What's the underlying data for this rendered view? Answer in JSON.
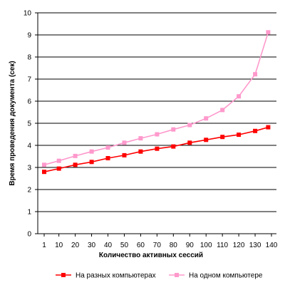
{
  "chart_data": {
    "type": "line",
    "title": "",
    "xlabel": "Количество активных сессий",
    "ylabel": "Время проведения документа (сек)",
    "categories": [
      "1",
      "10",
      "20",
      "30",
      "40",
      "50",
      "60",
      "70",
      "80",
      "90",
      "100",
      "110",
      "120",
      "130",
      "140"
    ],
    "ylim": [
      0,
      10
    ],
    "yticks": [
      0,
      1,
      2,
      3,
      4,
      5,
      6,
      7,
      8,
      9,
      10
    ],
    "grid": true,
    "legend_position": "bottom",
    "series": [
      {
        "name": "На разных компьютерах",
        "color": "#ff0000",
        "marker": "square",
        "x": [
          1,
          10,
          20,
          30,
          40,
          50,
          60,
          70,
          80,
          90,
          100,
          110,
          120,
          130,
          138
        ],
        "values": [
          2.8,
          2.95,
          3.12,
          3.25,
          3.42,
          3.55,
          3.72,
          3.85,
          3.95,
          4.12,
          4.25,
          4.38,
          4.48,
          4.65,
          4.82
        ]
      },
      {
        "name": "На одном компьютере",
        "color": "#ff99cc",
        "marker": "square",
        "x": [
          1,
          10,
          20,
          30,
          40,
          50,
          60,
          70,
          80,
          90,
          100,
          110,
          120,
          130,
          138
        ],
        "values": [
          3.12,
          3.3,
          3.52,
          3.72,
          3.9,
          4.12,
          4.32,
          4.5,
          4.72,
          4.92,
          5.22,
          5.6,
          6.22,
          7.22,
          9.12
        ]
      }
    ]
  }
}
